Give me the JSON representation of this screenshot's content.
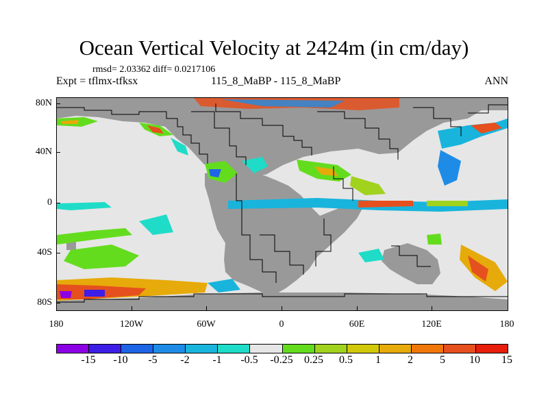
{
  "title": "Ocean Vertical Velocity at 2424m (in cm/day)",
  "stats": "rmsd= 2.03362 diff= 0.0217106",
  "experiment": "Expt = tflmx-tfksx",
  "case": "115_8_MaBP - 115_8_MaBP",
  "season": "ANN",
  "lat_labels": [
    "80N",
    "40N",
    "0",
    "40S",
    "80S"
  ],
  "lon_labels": [
    "180",
    "120W",
    "60W",
    "0",
    "60E",
    "120E",
    "180"
  ],
  "colors": {
    "land": "#999999",
    "near_zero": "#e6e6e6",
    "coast": "#000000"
  },
  "legend": {
    "colors": [
      "#8c00e6",
      "#3c1ee6",
      "#1e64e6",
      "#1e8ce6",
      "#19b4dc",
      "#1edcc8",
      "#e6e6e6",
      "#64dc1e",
      "#a0d21e",
      "#d2c80a",
      "#e6aa0a",
      "#f0780a",
      "#e6501e",
      "#e61e0a"
    ],
    "labels": [
      "-15",
      "-10",
      "-5",
      "-2",
      "-1",
      "-0.5",
      "-0.25",
      "0.25",
      "0.5",
      "1",
      "2",
      "5",
      "10",
      "15"
    ]
  }
}
